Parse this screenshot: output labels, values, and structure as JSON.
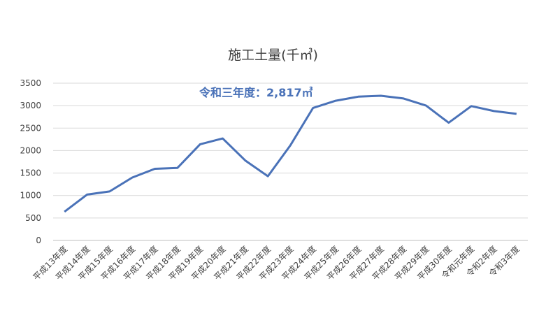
{
  "chart_data": {
    "type": "line",
    "title": "施工土量(千㎥)",
    "annotation": "令和三年度：2,817㎥",
    "categories": [
      "平成13年度",
      "平成14年度",
      "平成15年度",
      "平成16年度",
      "平成17年度",
      "平成18年度",
      "平成19年度",
      "平成20年度",
      "平成21年度",
      "平成22年度",
      "平成23年度",
      "平成24年度",
      "平成25年度",
      "平成26年度",
      "平成27年度",
      "平成28年度",
      "平成29年度",
      "平成30年度",
      "令和元年度",
      "令和2年度",
      "令和3年度"
    ],
    "values": [
      640,
      1020,
      1090,
      1400,
      1595,
      1615,
      2140,
      2270,
      1780,
      1430,
      2120,
      2950,
      3110,
      3200,
      3220,
      3160,
      3000,
      2620,
      2990,
      2880,
      2817
    ],
    "ylim": [
      0,
      3500
    ],
    "yticks": [
      0,
      500,
      1000,
      1500,
      2000,
      2500,
      3000,
      3500
    ],
    "grid": true,
    "line_color": "#4a72b8"
  }
}
